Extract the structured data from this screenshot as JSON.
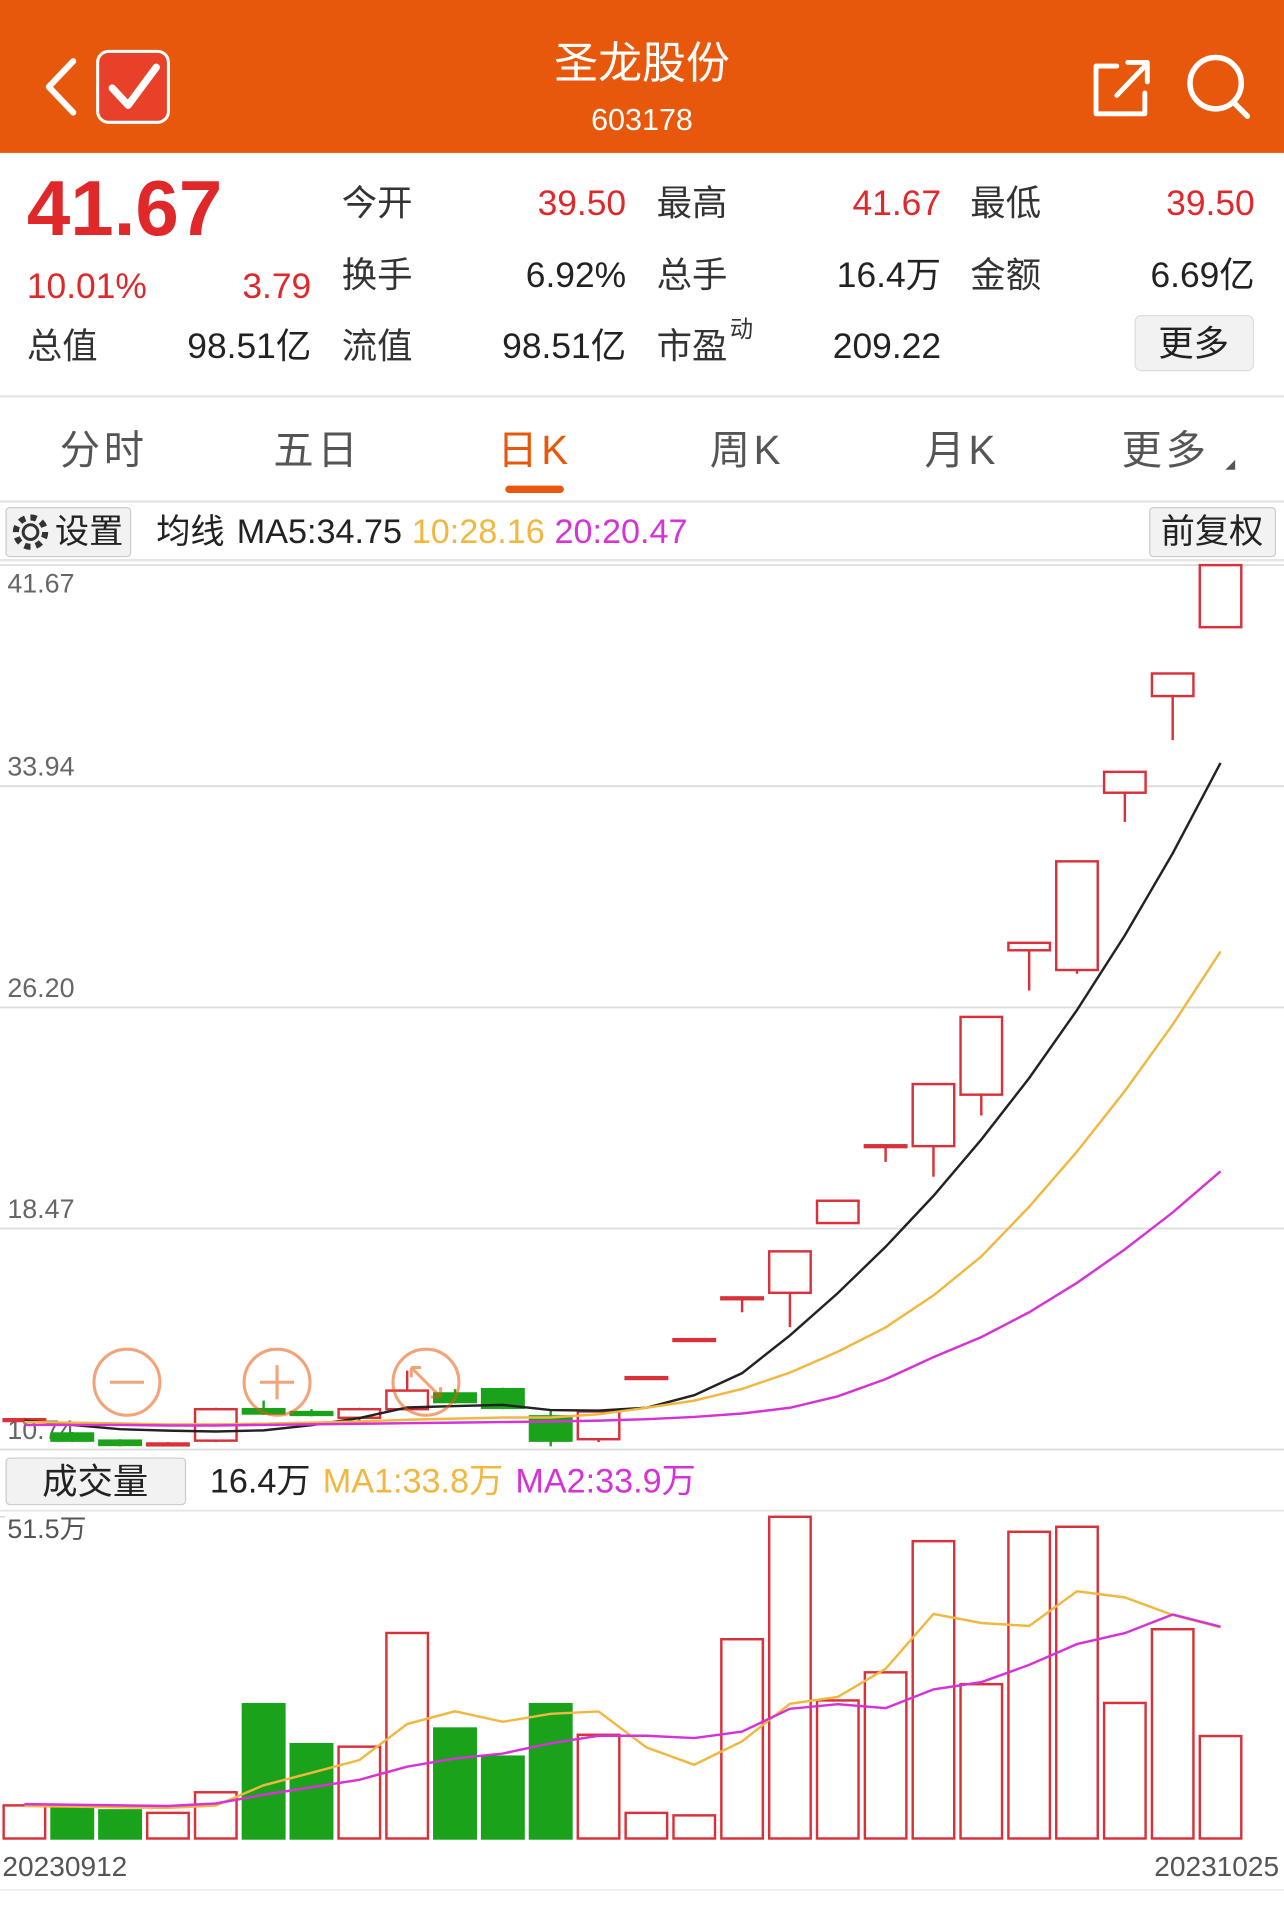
{
  "header": {
    "title": "圣龙股份",
    "code": "603178"
  },
  "quote": {
    "price": "41.67",
    "change_pct": "10.01%",
    "change": "3.79",
    "stats": [
      {
        "label": "今开",
        "value": "39.50"
      },
      {
        "label": "最高",
        "value": "41.67"
      },
      {
        "label": "最低",
        "value": "39.50"
      },
      {
        "label": "换手",
        "value": "6.92%"
      },
      {
        "label": "总手",
        "value": "16.4万"
      },
      {
        "label": "金额",
        "value": "6.69亿"
      },
      {
        "label": "总值",
        "value": "98.51亿"
      },
      {
        "label": "流值",
        "value": "98.51亿"
      },
      {
        "label": "市盈",
        "label_sup": "动",
        "value": "209.22"
      }
    ],
    "more": "更多"
  },
  "tabs": [
    "分时",
    "五日",
    "日K",
    "周K",
    "月K",
    "更多"
  ],
  "active_tab": 2,
  "toolbar": {
    "settings": "设置",
    "adjust": "前复权"
  },
  "chart_data": [
    {
      "type": "candlestick",
      "legend_title": "均线",
      "categories": [
        "20230912",
        null,
        null,
        null,
        null,
        null,
        null,
        null,
        null,
        null,
        null,
        null,
        null,
        null,
        null,
        null,
        null,
        null,
        null,
        null,
        null,
        null,
        null,
        null,
        null,
        "20231025"
      ],
      "open": [
        11.75,
        11.3,
        11.05,
        10.9,
        11.05,
        12.15,
        12.05,
        11.85,
        12.15,
        12.7,
        12.85,
        11.9,
        11.1,
        13.27,
        14.6,
        16.06,
        16.22,
        18.66,
        21.38,
        21.35,
        23.15,
        28.2,
        27.51,
        33.71,
        37.09,
        39.5
      ],
      "high": [
        11.85,
        11.35,
        11.1,
        11.0,
        12.2,
        12.45,
        12.15,
        12.2,
        13.5,
        12.85,
        12.9,
        12.1,
        12.1,
        13.27,
        14.6,
        16.06,
        17.67,
        19.44,
        21.38,
        23.52,
        25.87,
        28.46,
        31.31,
        34.44,
        37.88,
        41.67
      ],
      "low": [
        11.65,
        11.0,
        10.85,
        10.85,
        11.0,
        11.95,
        11.9,
        11.75,
        12.1,
        12.35,
        12.15,
        10.85,
        11.0,
        13.27,
        14.6,
        15.54,
        15.02,
        18.66,
        20.8,
        20.28,
        22.42,
        26.79,
        27.38,
        32.69,
        35.55,
        39.5
      ],
      "close": [
        11.8,
        11.05,
        10.9,
        10.95,
        12.15,
        12.0,
        11.95,
        12.15,
        12.8,
        12.4,
        12.2,
        11.05,
        12.07,
        13.27,
        14.6,
        16.06,
        17.67,
        19.44,
        21.38,
        23.52,
        25.87,
        28.46,
        31.31,
        34.44,
        37.88,
        41.67
      ],
      "up_color": "#d8313a",
      "down_color": "#1aa31a",
      "series": [
        {
          "name": "MA5:34.75",
          "color": "#222222",
          "values": [
            11.75,
            11.6,
            11.45,
            11.4,
            11.37,
            11.41,
            11.59,
            11.84,
            12.21,
            12.26,
            12.3,
            12.12,
            12.1,
            12.2,
            12.64,
            13.41,
            14.73,
            16.21,
            17.83,
            19.61,
            21.58,
            23.73,
            26.11,
            28.72,
            31.59,
            34.75
          ]
        },
        {
          "name": "10:28.16",
          "color": "#f0b840",
          "values": [
            11.7,
            11.68,
            11.65,
            11.62,
            11.62,
            11.64,
            11.68,
            11.72,
            11.78,
            11.82,
            11.86,
            11.86,
            11.97,
            12.2,
            12.45,
            12.86,
            13.43,
            14.16,
            15.01,
            16.13,
            17.49,
            19.23,
            21.16,
            23.28,
            25.6,
            28.16
          ]
        },
        {
          "name": "20:20.47",
          "color": "#d633d6",
          "values": [
            11.6,
            11.6,
            11.6,
            11.58,
            11.58,
            11.6,
            11.62,
            11.64,
            11.66,
            11.68,
            11.7,
            11.72,
            11.75,
            11.8,
            11.88,
            12.0,
            12.2,
            12.6,
            13.2,
            13.97,
            14.67,
            15.54,
            16.57,
            17.74,
            19.03,
            20.47
          ]
        }
      ],
      "ylim": [
        10.74,
        41.67
      ],
      "yticks": [
        10.74,
        18.47,
        {
          "value": 26.2,
          "label": "26.20"
        },
        33.94,
        41.67
      ],
      "grid": true
    },
    {
      "type": "bar",
      "title": "成交量",
      "current_label": "16.4万",
      "values": [
        5.3,
        5.1,
        4.5,
        4.1,
        7.4,
        21.5,
        15.1,
        14.7,
        32.9,
        17.6,
        13.1,
        21.5,
        16.6,
        4.1,
        3.7,
        31.9,
        51.5,
        22.1,
        26.6,
        47.6,
        24.7,
        49.1,
        49.9,
        21.7,
        33.5,
        16.4
      ],
      "series": [
        {
          "name": "MA1:33.8万",
          "color": "#f0b840",
          "values": [
            5.2,
            5.1,
            5.0,
            4.9,
            5.28,
            8.52,
            10.52,
            12.56,
            18.32,
            20.36,
            18.68,
            19.96,
            20.34,
            14.58,
            11.8,
            15.56,
            21.56,
            22.66,
            27.16,
            35.94,
            34.5,
            34.02,
            39.58,
            38.6,
            35.78,
            33.8
          ]
        },
        {
          "name": "MA2:33.9万",
          "color": "#d633d6",
          "values": [
            5.5,
            5.4,
            5.3,
            5.2,
            5.6,
            7.0,
            8.2,
            9.4,
            11.5,
            12.82,
            13.6,
            15.24,
            16.45,
            16.45,
            16.08,
            17.12,
            20.76,
            21.5,
            20.87,
            23.87,
            25.03,
            27.79,
            31.12,
            32.88,
            35.86,
            33.9
          ]
        }
      ],
      "ylim": [
        0,
        51.5
      ],
      "yticks": [
        {
          "value": 51.5,
          "label": "51.5万"
        }
      ]
    }
  ]
}
